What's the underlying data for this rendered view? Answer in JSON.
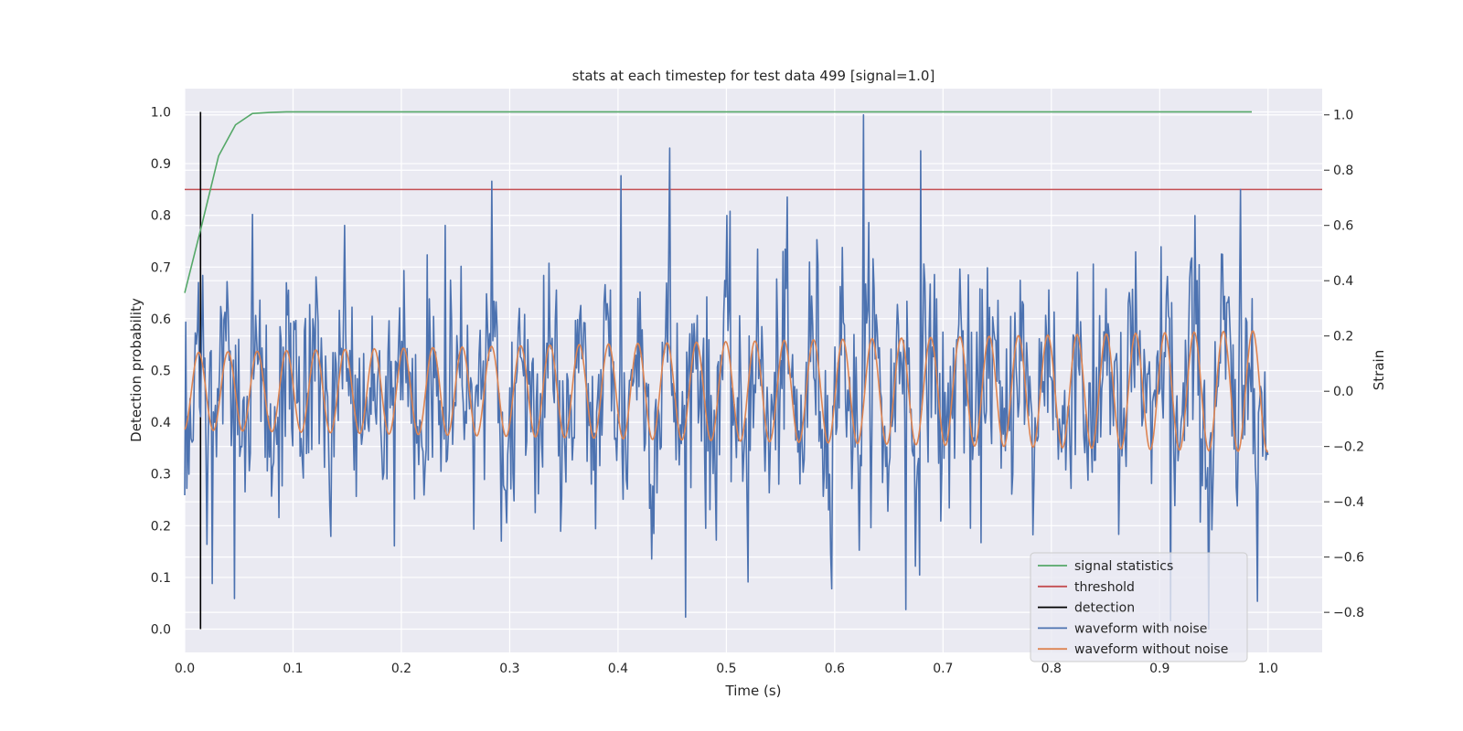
{
  "chart_data": {
    "type": "line",
    "title": "stats at each timestep for test data 499 [signal=1.0]",
    "xlabel": "Time (s)",
    "ylabel_left": "Detection probability",
    "ylabel_right": "Strain",
    "xlim": [
      0.0,
      1.05
    ],
    "ylim_left": [
      -0.045,
      1.045
    ],
    "ylim_right": [
      -0.945,
      1.095
    ],
    "xticks": [
      0.0,
      0.1,
      0.2,
      0.3,
      0.4,
      0.5,
      0.6,
      0.7,
      0.8,
      0.9,
      1.0
    ],
    "xtick_labels": [
      "0.0",
      "0.1",
      "0.2",
      "0.3",
      "0.4",
      "0.5",
      "0.6",
      "0.7",
      "0.8",
      "0.9",
      "1.0"
    ],
    "yticks_left": [
      0.0,
      0.1,
      0.2,
      0.3,
      0.4,
      0.5,
      0.6,
      0.7,
      0.8,
      0.9,
      1.0
    ],
    "ytick_labels_left": [
      "0.0",
      "0.1",
      "0.2",
      "0.3",
      "0.4",
      "0.5",
      "0.6",
      "0.7",
      "0.8",
      "0.9",
      "1.0"
    ],
    "yticks_right": [
      -0.8,
      -0.6,
      -0.4,
      -0.2,
      0.0,
      0.2,
      0.4,
      0.6,
      0.8,
      1.0
    ],
    "ytick_labels_right": [
      "−0.8",
      "−0.6",
      "−0.4",
      "−0.2",
      "0.0",
      "0.2",
      "0.4",
      "0.6",
      "0.8",
      "1.0"
    ],
    "grid": true,
    "legend_position": "bottom-right",
    "series": [
      {
        "name": "signal statistics",
        "axis": "left",
        "color": "#55a868",
        "x": [
          0.0,
          0.0156,
          0.0313,
          0.0469,
          0.0625,
          0.0781,
          0.0938,
          0.1094,
          0.2,
          0.3,
          0.4,
          0.5,
          0.6,
          0.7,
          0.8,
          0.9,
          0.985
        ],
        "y": [
          0.65,
          0.78,
          0.915,
          0.975,
          0.997,
          0.999,
          1.0,
          1.0,
          1.0,
          1.0,
          1.0,
          1.0,
          1.0,
          1.0,
          1.0,
          1.0,
          1.0
        ]
      },
      {
        "name": "threshold",
        "axis": "left",
        "color": "#c44e52",
        "x": [
          0.0,
          1.05
        ],
        "y": [
          0.85,
          0.85
        ]
      },
      {
        "name": "detection",
        "axis": "left",
        "color": "#000000",
        "x": [
          0.0146,
          0.0146
        ],
        "y": [
          0.0,
          1.0
        ]
      },
      {
        "name": "waveform with noise",
        "axis": "right",
        "color": "#4c72b0",
        "x_start": 0.0,
        "x_end": 1.0,
        "n_points": 1024,
        "y_range": [
          -0.86,
          1.0
        ],
        "peaks": [
          {
            "x": 0.0625,
            "y": 0.64
          },
          {
            "x": 0.148,
            "y": 0.6
          },
          {
            "x": 0.24,
            "y": 0.6
          },
          {
            "x": 0.283,
            "y": 0.76
          },
          {
            "x": 0.403,
            "y": 0.78
          },
          {
            "x": 0.448,
            "y": 0.88
          },
          {
            "x": 0.627,
            "y": 1.0
          },
          {
            "x": 0.679,
            "y": 0.87
          },
          {
            "x": 0.975,
            "y": 0.73
          }
        ],
        "troughs": [
          {
            "x": 0.046,
            "y": -0.75
          },
          {
            "x": 0.52,
            "y": -0.69
          },
          {
            "x": 0.666,
            "y": -0.79
          },
          {
            "x": 0.91,
            "y": -0.83
          },
          {
            "x": 0.945,
            "y": -0.86
          },
          {
            "x": 0.99,
            "y": -0.76
          }
        ]
      },
      {
        "name": "waveform without noise",
        "axis": "right",
        "color": "#dd8452",
        "x_start": 0.0,
        "x_end": 1.0,
        "n_points": 1024,
        "cycles": 37,
        "amplitude_start": 0.14,
        "amplitude_end": 0.22
      }
    ]
  }
}
